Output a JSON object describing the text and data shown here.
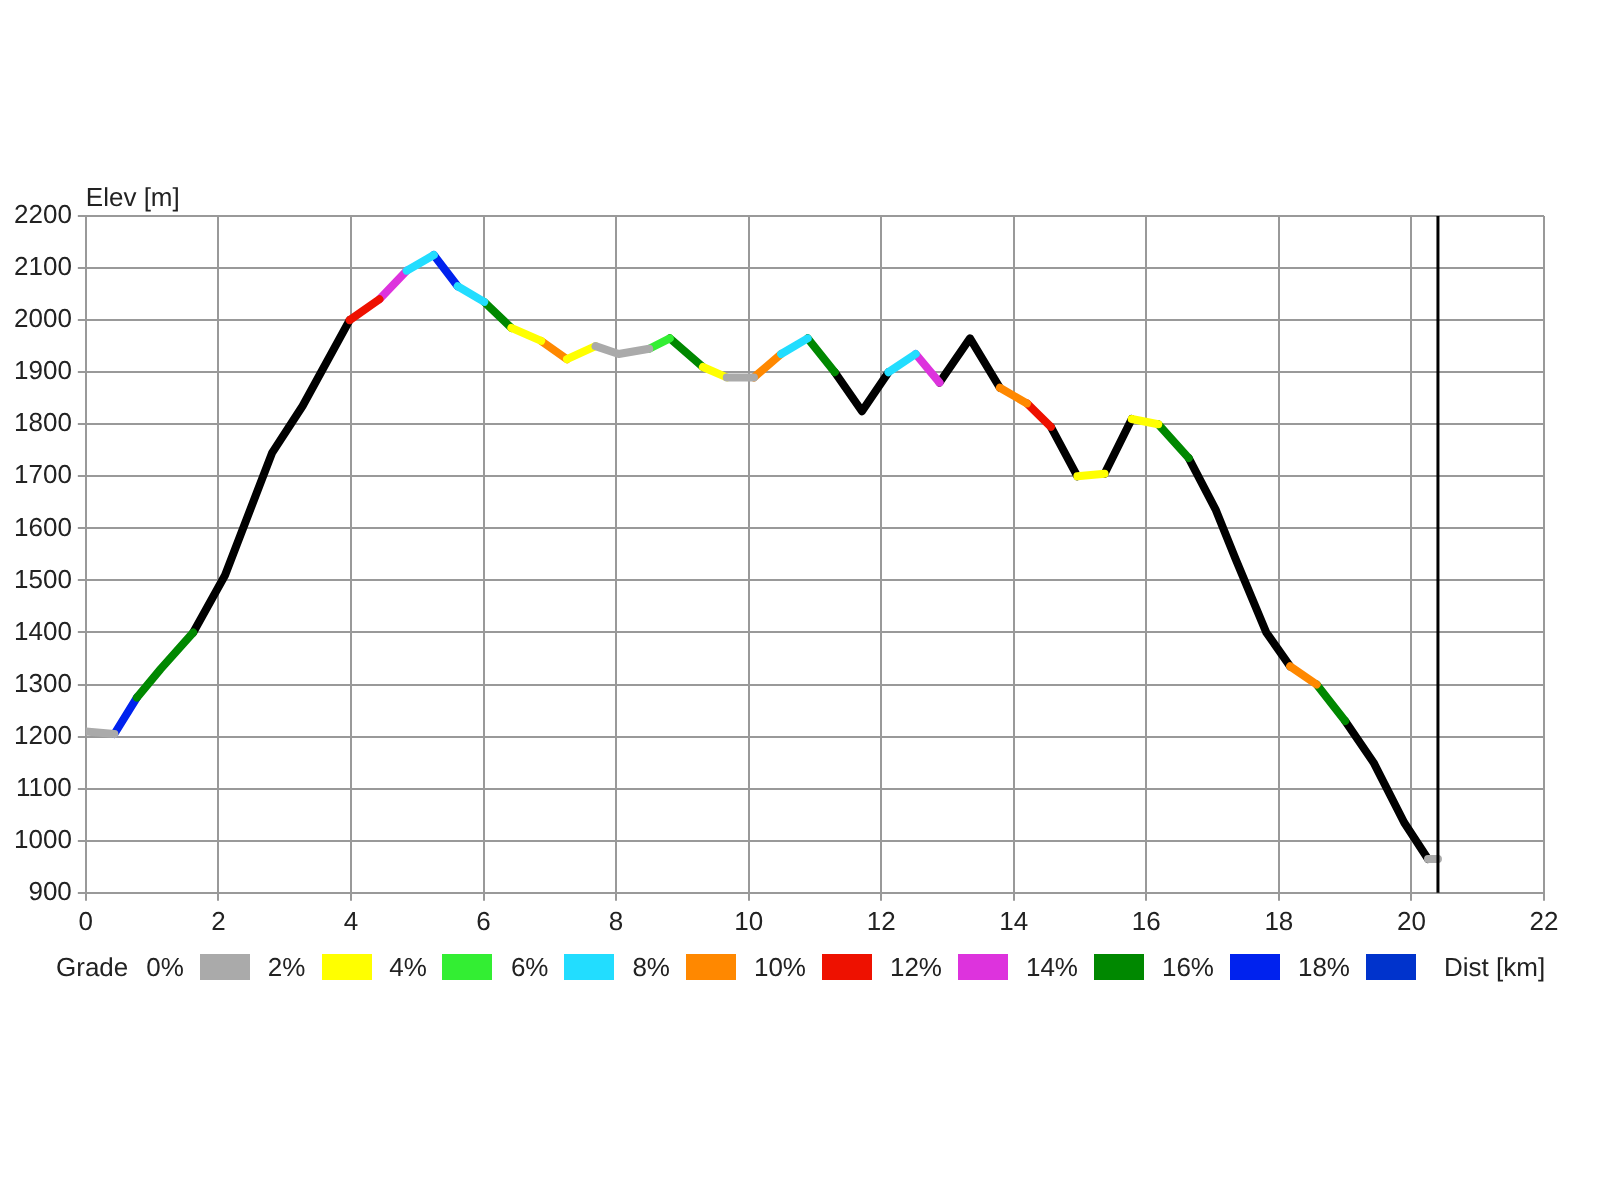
{
  "chart_data": {
    "type": "line",
    "ylabel": "Elev [m]",
    "xlabel": "Dist [km]",
    "legend_title": "Grade",
    "xlim": [
      0,
      22
    ],
    "xticks": [
      0,
      2,
      4,
      6,
      8,
      10,
      12,
      14,
      16,
      18,
      20,
      22
    ],
    "ylim": [
      900,
      2200
    ],
    "yticks": [
      900,
      1000,
      1100,
      1200,
      1300,
      1400,
      1500,
      1600,
      1700,
      1800,
      1900,
      2000,
      2100,
      2200
    ],
    "grid": true,
    "legend": "bottom",
    "marker": "none",
    "line_style": "solid",
    "ref_lines": [
      {
        "axis": "x",
        "value": 20.4,
        "color": "#000000"
      }
    ],
    "series": [
      {
        "name": "0%",
        "color": "#aaaaaa",
        "x": [
          0,
          0.43,
          null,
          7.69,
          8.04,
          8.5,
          null,
          9.67,
          10.08,
          null,
          20.25,
          20.4
        ],
        "values": [
          1210,
          1205,
          null,
          1950,
          1935,
          1945,
          null,
          1890,
          1890,
          null,
          965,
          965
        ]
      },
      {
        "name": "2%",
        "color": "#ffff00",
        "x": [
          6.42,
          6.87,
          null,
          7.26,
          7.69,
          null,
          9.31,
          9.67,
          null,
          14.96,
          15.37,
          null,
          15.78,
          16.18
        ],
        "values": [
          1985,
          1960,
          null,
          1925,
          1950,
          null,
          1910,
          1890,
          null,
          1700,
          1705,
          null,
          1810,
          1800
        ]
      },
      {
        "name": "4%",
        "color": "#33ee33",
        "x": [
          8.5,
          8.81
        ],
        "values": [
          1945,
          1965
        ]
      },
      {
        "name": "6%",
        "color": "#22ddff",
        "x": [
          4.84,
          5.25,
          null,
          5.61,
          6.01,
          null,
          10.49,
          10.89,
          null,
          12.11,
          12.52
        ],
        "values": [
          2095,
          2125,
          null,
          2065,
          2035,
          null,
          1935,
          1965,
          null,
          1900,
          1935
        ]
      },
      {
        "name": "8%",
        "color": "#ff8800",
        "x": [
          6.87,
          7.26,
          null,
          10.08,
          10.49,
          null,
          13.79,
          14.2,
          null,
          18.17,
          18.57
        ],
        "values": [
          1960,
          1925,
          null,
          1890,
          1935,
          null,
          1870,
          1840,
          null,
          1335,
          1300
        ]
      },
      {
        "name": "10%",
        "color": "#ee1100",
        "x": [
          3.98,
          4.43,
          null,
          14.2,
          14.56
        ],
        "values": [
          2000,
          2040,
          null,
          1840,
          1795
        ]
      },
      {
        "name": "12%",
        "color": "#dd33dd",
        "x": [
          4.43,
          4.84,
          null,
          12.52,
          12.88
        ],
        "values": [
          2040,
          2095,
          null,
          1935,
          1880
        ]
      },
      {
        "name": "14%",
        "color": "#008800",
        "x": [
          0.77,
          1.13,
          1.62,
          null,
          6.01,
          6.42,
          null,
          8.81,
          9.31,
          null,
          10.89,
          11.3,
          null,
          16.18,
          16.64,
          null,
          18.57,
          19.0
        ],
        "values": [
          1275,
          1330,
          1400,
          null,
          2035,
          1985,
          null,
          1965,
          1910,
          null,
          1965,
          1900,
          null,
          1800,
          1735,
          null,
          1300,
          1230
        ]
      },
      {
        "name": "16%",
        "color": "#0022ee",
        "x": [
          0.43,
          0.77,
          null,
          5.25,
          5.61
        ],
        "values": [
          1205,
          1275,
          null,
          2125,
          2065
        ]
      },
      {
        "name": "18%",
        "color": "#0033cc"
      },
      {
        "color": "#000000",
        "x": [
          1.62,
          2.1,
          2.81,
          3.27,
          3.98,
          null,
          11.3,
          11.71,
          12.11,
          null,
          12.88,
          13.34,
          13.79,
          null,
          14.56,
          14.96,
          null,
          15.37,
          15.78,
          null,
          16.64,
          17.05,
          17.35,
          17.81,
          18.17,
          null,
          19.0,
          19.43,
          19.89,
          20.25
        ],
        "values": [
          1400,
          1510,
          1745,
          1835,
          2000,
          null,
          1900,
          1825,
          1900,
          null,
          1880,
          1965,
          1870,
          null,
          1795,
          1700,
          null,
          1705,
          1810,
          null,
          1735,
          1635,
          1540,
          1400,
          1335,
          null,
          1230,
          1150,
          1035,
          965
        ]
      }
    ]
  }
}
